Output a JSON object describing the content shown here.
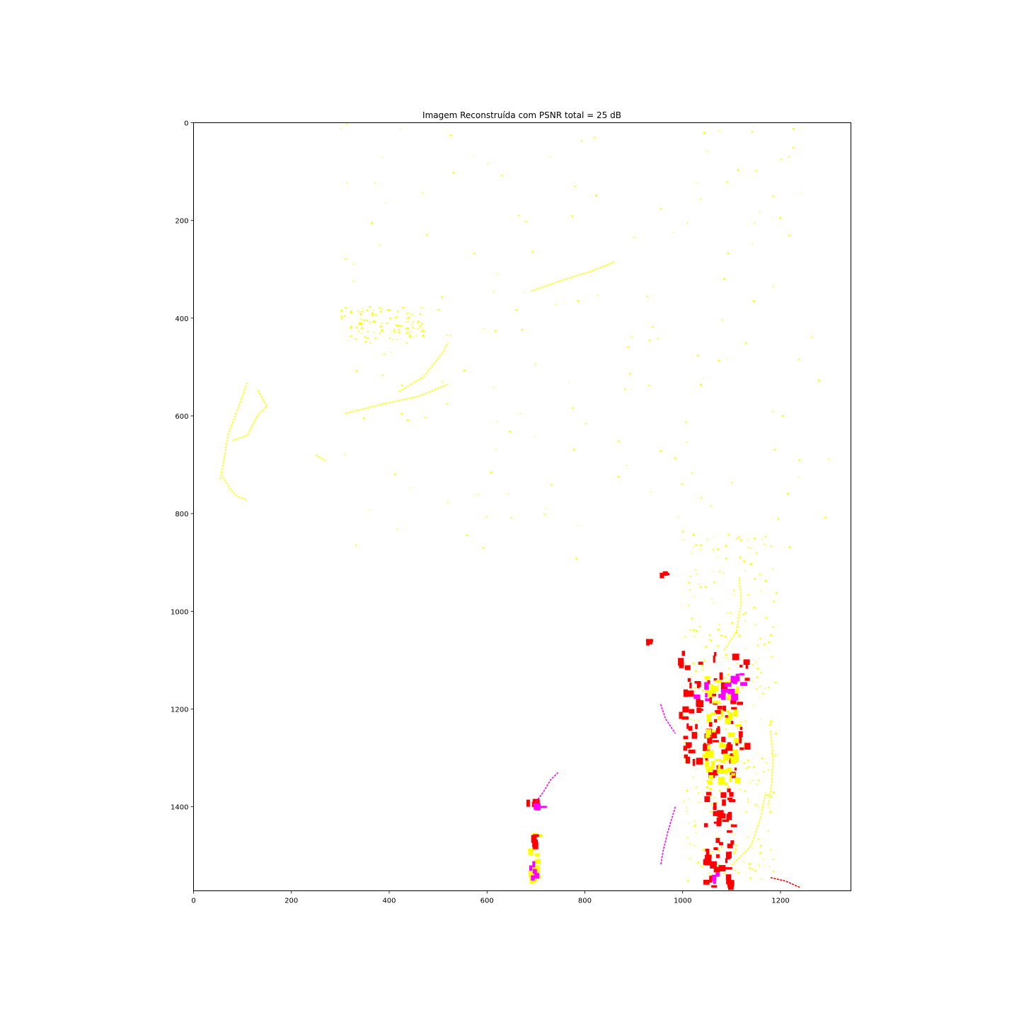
{
  "chart_data": {
    "type": "heatmap",
    "title": "Imagem Reconstruída com PSNR total = 25 dB",
    "xlabel": "",
    "ylabel": "",
    "xlim": [
      0,
      1344
    ],
    "ylim": [
      1572,
      0
    ],
    "x_ticks": [
      0,
      200,
      400,
      600,
      800,
      1000,
      1200
    ],
    "y_ticks": [
      0,
      200,
      400,
      600,
      800,
      1000,
      1200,
      1400
    ],
    "grid": false,
    "background_color": "#ffffff",
    "palette": {
      "yellow": "#ffff00",
      "red": "#ff0000",
      "magenta": "#ff00ff"
    },
    "regions": [
      {
        "color": "yellow",
        "kind": "dots",
        "x": [
          300,
          470
        ],
        "y": [
          375,
          450
        ],
        "n": 120
      },
      {
        "color": "yellow",
        "kind": "curve",
        "points": [
          [
            55,
            730
          ],
          [
            62,
            690
          ],
          [
            70,
            640
          ],
          [
            85,
            600
          ],
          [
            100,
            560
          ],
          [
            110,
            530
          ]
        ]
      },
      {
        "color": "yellow",
        "kind": "curve",
        "points": [
          [
            80,
            650
          ],
          [
            110,
            640
          ],
          [
            130,
            600
          ],
          [
            150,
            580
          ],
          [
            130,
            545
          ]
        ]
      },
      {
        "color": "yellow",
        "kind": "curve",
        "points": [
          [
            60,
            725
          ],
          [
            75,
            750
          ],
          [
            90,
            765
          ],
          [
            110,
            772
          ]
        ]
      },
      {
        "color": "yellow",
        "kind": "curve",
        "points": [
          [
            310,
            595
          ],
          [
            390,
            575
          ],
          [
            460,
            560
          ],
          [
            520,
            535
          ]
        ]
      },
      {
        "color": "yellow",
        "kind": "curve",
        "points": [
          [
            420,
            550
          ],
          [
            470,
            520
          ],
          [
            510,
            470
          ],
          [
            520,
            450
          ]
        ]
      },
      {
        "color": "yellow",
        "kind": "curve",
        "points": [
          [
            690,
            345
          ],
          [
            760,
            320
          ],
          [
            810,
            305
          ],
          [
            860,
            285
          ]
        ]
      },
      {
        "color": "yellow",
        "kind": "curve",
        "points": [
          [
            250,
            680
          ],
          [
            270,
            692
          ]
        ]
      },
      {
        "color": "yellow",
        "kind": "dots",
        "x": [
          300,
          1300
        ],
        "y": [
          0,
          900
        ],
        "n": 160
      },
      {
        "color": "yellow",
        "kind": "dots",
        "x": [
          1000,
          1190
        ],
        "y": [
          840,
          1560
        ],
        "n": 320
      },
      {
        "color": "yellow",
        "kind": "curve",
        "points": [
          [
            1100,
            1520
          ],
          [
            1140,
            1480
          ],
          [
            1160,
            1420
          ],
          [
            1170,
            1370
          ]
        ]
      },
      {
        "color": "yellow",
        "kind": "curve",
        "points": [
          [
            1180,
            1250
          ],
          [
            1185,
            1300
          ],
          [
            1182,
            1350
          ],
          [
            1175,
            1400
          ]
        ]
      },
      {
        "color": "yellow",
        "kind": "curve",
        "points": [
          [
            1085,
            1080
          ],
          [
            1110,
            1040
          ],
          [
            1120,
            980
          ],
          [
            1115,
            930
          ]
        ]
      },
      {
        "color": "red",
        "kind": "blocks",
        "x": [
          990,
          1130
        ],
        "y": [
          1080,
          1330
        ],
        "n": 90
      },
      {
        "color": "yellow",
        "kind": "blocks",
        "x": [
          1040,
          1110
        ],
        "y": [
          1130,
          1350
        ],
        "n": 60
      },
      {
        "color": "magenta",
        "kind": "blocks",
        "x": [
          1020,
          1120
        ],
        "y": [
          1110,
          1180
        ],
        "n": 16
      },
      {
        "color": "red",
        "kind": "blocks",
        "x": [
          1040,
          1100
        ],
        "y": [
          1350,
          1570
        ],
        "n": 50
      },
      {
        "color": "magenta",
        "kind": "blocks",
        "x": [
          1050,
          1080
        ],
        "y": [
          1530,
          1555
        ],
        "n": 3
      },
      {
        "color": "magenta",
        "kind": "curve",
        "points": [
          [
            955,
            1190
          ],
          [
            965,
            1220
          ],
          [
            985,
            1250
          ]
        ]
      },
      {
        "color": "magenta",
        "kind": "curve",
        "points": [
          [
            985,
            1400
          ],
          [
            970,
            1450
          ],
          [
            960,
            1490
          ],
          [
            955,
            1520
          ]
        ]
      },
      {
        "color": "red",
        "kind": "blocks",
        "x": [
          680,
          705
        ],
        "y": [
          1380,
          1400
        ],
        "n": 6
      },
      {
        "color": "magenta",
        "kind": "blocks",
        "x": [
          695,
          710
        ],
        "y": [
          1380,
          1400
        ],
        "n": 3
      },
      {
        "color": "yellow",
        "kind": "blocks",
        "x": [
          683,
          700
        ],
        "y": [
          1440,
          1545
        ],
        "n": 18
      },
      {
        "color": "red",
        "kind": "blocks",
        "x": [
          683,
          700
        ],
        "y": [
          1455,
          1480
        ],
        "n": 5
      },
      {
        "color": "magenta",
        "kind": "blocks",
        "x": [
          683,
          700
        ],
        "y": [
          1500,
          1545
        ],
        "n": 5
      },
      {
        "color": "magenta",
        "kind": "curve",
        "points": [
          [
            700,
            1390
          ],
          [
            715,
            1370
          ],
          [
            730,
            1345
          ],
          [
            745,
            1330
          ]
        ]
      },
      {
        "color": "red",
        "kind": "curve",
        "points": [
          [
            1180,
            1545
          ],
          [
            1210,
            1552
          ],
          [
            1240,
            1565
          ]
        ]
      },
      {
        "color": "red",
        "kind": "blocks",
        "x": [
          925,
          940
        ],
        "y": [
          1055,
          1070
        ],
        "n": 3
      },
      {
        "color": "red",
        "kind": "blocks",
        "x": [
          948,
          960
        ],
        "y": [
          918,
          930
        ],
        "n": 3
      }
    ]
  }
}
